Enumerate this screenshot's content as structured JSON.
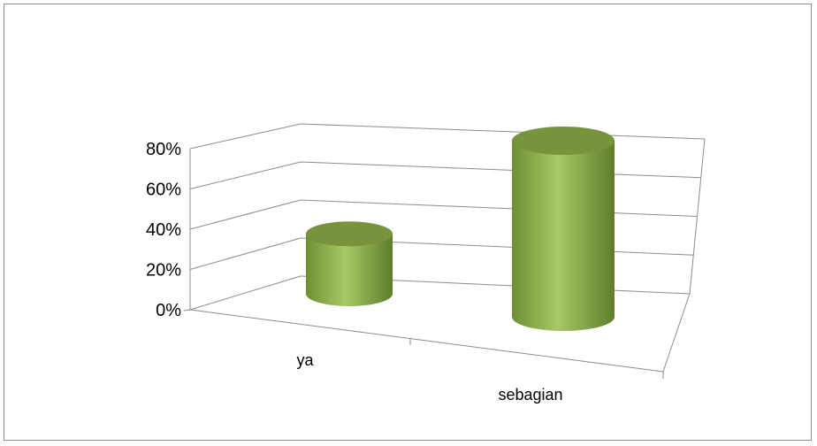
{
  "chart_data": {
    "type": "bar",
    "style": "3d-cylinder",
    "categories": [
      "ya",
      "sebagian"
    ],
    "values": [
      0.3,
      0.7
    ],
    "ylim": [
      0,
      0.8
    ],
    "yticks": [
      "0%",
      "20%",
      "40%",
      "60%",
      "80%"
    ],
    "grid": true,
    "legend": "none",
    "colors": {
      "bar": "#9bbb59",
      "bar_top": "#77933c",
      "grid": "#8c8c8c"
    }
  }
}
